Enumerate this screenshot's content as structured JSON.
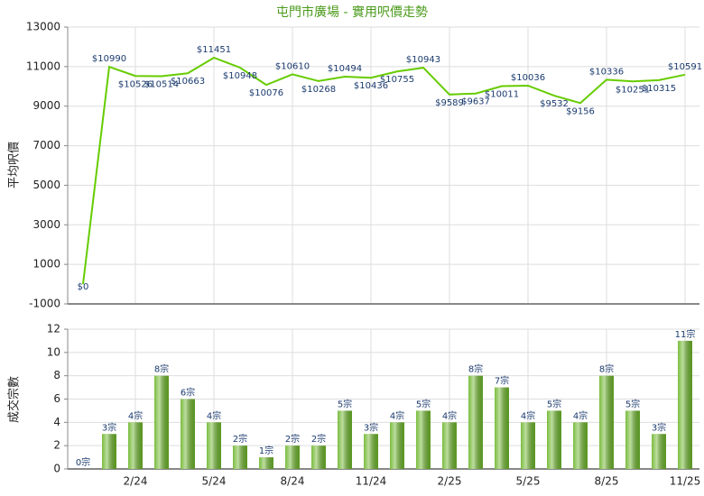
{
  "chart_data": [
    {
      "type": "line",
      "title": "屯門市廣場 - 實用呎價走勢",
      "y_label": "平均呎價",
      "ylim": [
        -1000,
        13000
      ],
      "yticks": [
        -1000,
        1000,
        3000,
        5000,
        7000,
        9000,
        11000,
        13000
      ],
      "grid": true,
      "series": [
        {
          "name": "平均呎價",
          "color": "#66cc00",
          "values": [
            0,
            10990,
            10526,
            10514,
            10663,
            11451,
            10948,
            10076,
            10610,
            10268,
            10494,
            10436,
            10755,
            10943,
            9589,
            9637,
            10011,
            10036,
            9532,
            9156,
            10336,
            10251,
            10315,
            10591
          ],
          "value_labels": [
            "$0",
            "$10990",
            "$10526",
            "$10514",
            "$10663",
            "$11451",
            "$10948",
            "$10076",
            "$10610",
            "$10268",
            "$10494",
            "$10436",
            "$10755",
            "$10943",
            "$9589",
            "$9637",
            "$10011",
            "$10036",
            "$9532",
            "$9156",
            "$10336",
            "$10251",
            "$10315",
            "$10591"
          ]
        }
      ]
    },
    {
      "type": "bar",
      "y_label": "成交宗數",
      "categories": [
        null,
        null,
        "2/24",
        null,
        null,
        "5/24",
        null,
        null,
        "8/24",
        null,
        null,
        "11/24",
        null,
        null,
        "2/25",
        null,
        null,
        "5/25",
        null,
        null,
        "8/25",
        null,
        null,
        "11/25"
      ],
      "ylim": [
        0,
        12
      ],
      "yticks": [
        0,
        2,
        4,
        6,
        8,
        10,
        12
      ],
      "grid": true,
      "series": [
        {
          "name": "成交宗數",
          "color": "#6cb52a",
          "values": [
            0,
            3,
            4,
            8,
            6,
            4,
            2,
            1,
            2,
            2,
            5,
            3,
            4,
            5,
            4,
            8,
            7,
            4,
            5,
            4,
            8,
            5,
            3,
            11
          ],
          "value_labels": [
            "0宗",
            "3宗",
            "4宗",
            "8宗",
            "6宗",
            "4宗",
            "2宗",
            "1宗",
            "2宗",
            "2宗",
            "5宗",
            "3宗",
            "4宗",
            "5宗",
            "4宗",
            "8宗",
            "7宗",
            "4宗",
            "5宗",
            "4宗",
            "8宗",
            "5宗",
            "3宗",
            "11宗"
          ]
        }
      ]
    }
  ]
}
